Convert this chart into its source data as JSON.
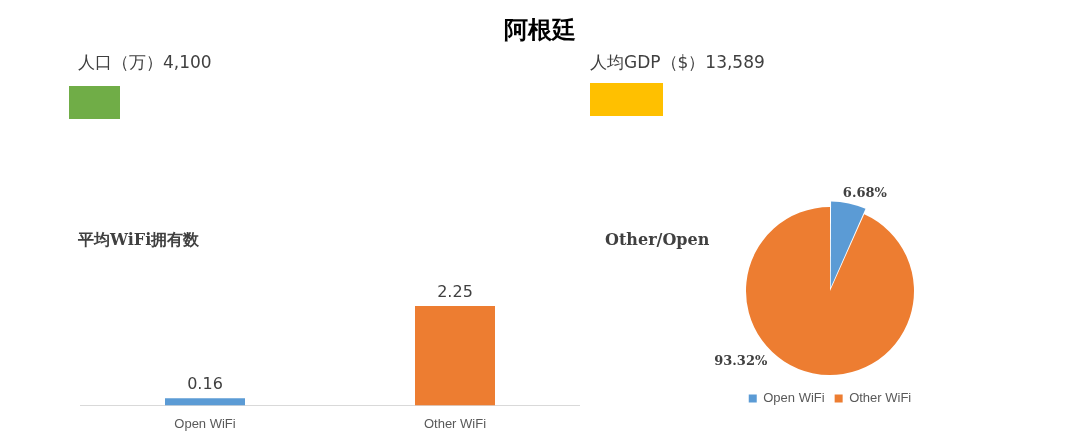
{
  "chart_data": [
    {
      "type": "other",
      "title": "阿根廷",
      "annotations": [
        "人口（万）4,100",
        "人均GDP（$）13,589"
      ],
      "colors": [
        "#70ad47",
        "#ffc000"
      ]
    },
    {
      "type": "bar",
      "title": "平均WiFi拥有数",
      "categories": [
        "Open WiFi",
        "Other WiFi"
      ],
      "colors": [
        "#5b9bd5",
        "#ed7d31"
      ],
      "values": [
        0.16,
        2.25
      ],
      "data_labels": true
    },
    {
      "type": "pie",
      "title": "Other/Open",
      "categories": [
        "Open WiFi",
        "Other WiFi"
      ],
      "values": [
        6.68,
        93.32
      ],
      "colors": [
        "#5b9bd5",
        "#ed7d31"
      ],
      "value_labels": [
        "6.68%",
        "93.32%"
      ],
      "legend": "bottom"
    }
  ]
}
